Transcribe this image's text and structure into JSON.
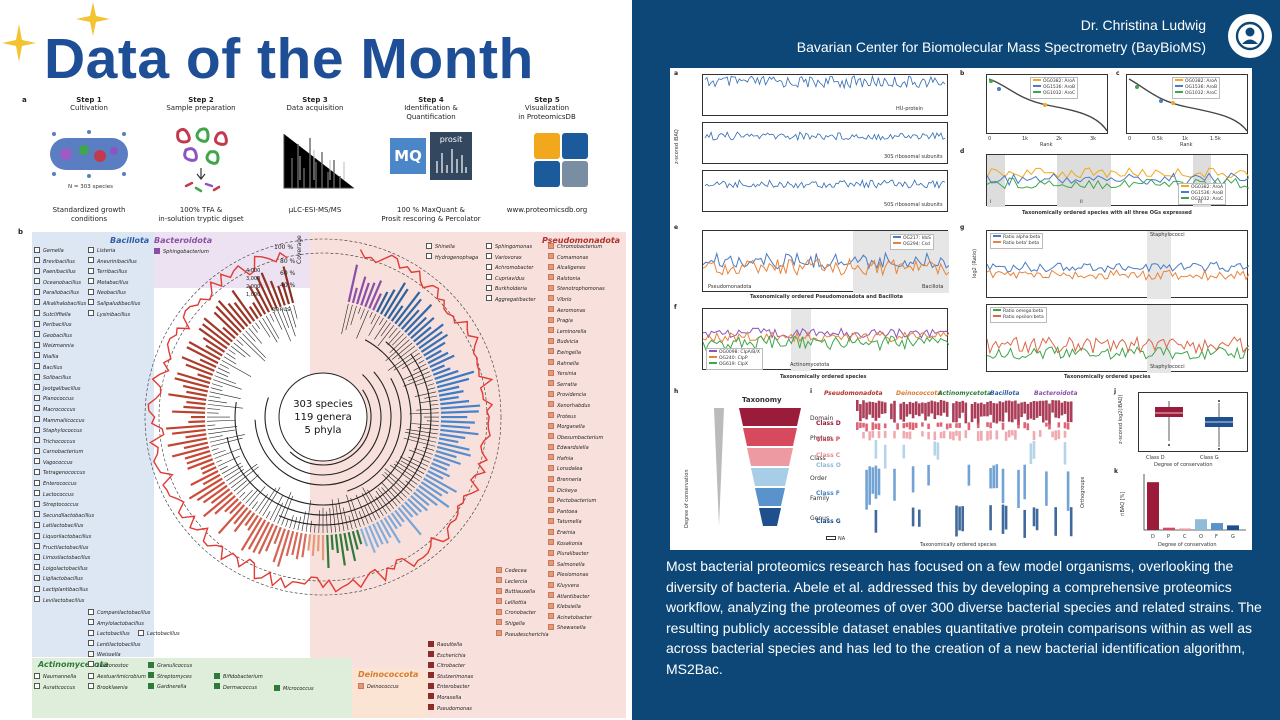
{
  "left": {
    "title": "Data of the Month",
    "panel_a": "a",
    "panel_b": "b",
    "steps": [
      {
        "name": "Step 1",
        "desc1": "Cultivation",
        "desc2": "",
        "foot1": "Standardized growth",
        "foot2": "conditions",
        "note": "N = 303 species"
      },
      {
        "name": "Step 2",
        "desc1": "Sample preparation",
        "desc2": "",
        "foot1": "100% TFA &",
        "foot2": "in-solution tryptic digset"
      },
      {
        "name": "Step 3",
        "desc1": "Data acquisition",
        "desc2": "",
        "foot1": "µLC-ESI-MS/MS",
        "foot2": ""
      },
      {
        "name": "Step 4",
        "desc1": "Identification &",
        "desc2": "Quantification",
        "foot1": "100 % MaxQuant &",
        "foot2": "Prosit rescoring & Percolator"
      },
      {
        "name": "Step 5",
        "desc1": "Visualization",
        "desc2": "in ProteomicsDB",
        "foot1": "www.proteomicsdb.org",
        "foot2": ""
      }
    ],
    "mq_label": "MQ",
    "prosit_label": "prosit",
    "phyla": {
      "bacillota": "Bacillota",
      "bacteroidota": "Bacteroidota",
      "pseudomonadota": "Pseudomonadota",
      "actinomycetota": "Actinomycetota",
      "deinococcota": "Deinococcota"
    },
    "tree_center": [
      "303 species",
      "119 genera",
      "5 phyla"
    ],
    "coverage_label": "Coverage",
    "coverage_ticks": [
      "100 %",
      "80 %",
      "60 %",
      "40 %"
    ],
    "protein_ticks": [
      "4,000",
      "3,000",
      "2,000",
      "1,000"
    ],
    "genus_label": "genus",
    "bacillota_col1": [
      "Gemella",
      "Brevibacillus",
      "Paenibacillus",
      "Oceanobacillus",
      "Paraliobacillus",
      "Alkalihalobacillus",
      "Sutcliffiella",
      "Peribacillus",
      "Geobacillus",
      "Weizmannia",
      "Niallia",
      "Bacillus",
      "Solibacillus",
      "Jeotgalibacillus",
      "Planococcus",
      "Macrococcus",
      "Mammaliicoccus",
      "Staphylococcus",
      "Trichococcus",
      "Carnobacterium",
      "Vagococcus",
      "Tetragenococcus",
      "Enterococcus",
      "Lactococcus",
      "Streptococcus",
      "Secundilactobacillus",
      "Latilactobacillus",
      "Liquorilactobacillus",
      "Fructilactobacillus",
      "Limosilactobacillus",
      "Loigolactobacillus",
      "Ligilactobacillus",
      "Lactiplantibacillus",
      "Levilactobacillus"
    ],
    "bacillota_col2": [
      "Listeria",
      "Aneurinibacillus",
      "Terribacillus",
      "Metabacillus",
      "Neobacillus",
      "Salipaludibacillus",
      "Lysinibacillus"
    ],
    "bacillota_col3": [
      "Companilactobacillus",
      "Amylolactobacillus",
      "Lactobacillus",
      "Lentilactobacillus",
      "Weissella",
      "Leuconostoc"
    ],
    "bacillota_col4": [
      "Lactobacillus"
    ],
    "bacteroidota_genus": [
      "Sphingobacterium"
    ],
    "pseudo_col1": [
      "Shinella",
      "Hydrogenophaga"
    ],
    "pseudo_col2": [
      "Sphingomonas",
      "Variovorax",
      "Achromobacter",
      "Cupriavidus",
      "Burkholderia",
      "Aggregatibacter"
    ],
    "pseudo_col3": [
      "Chromobacterium",
      "Comamonas",
      "Alcaligenes",
      "Ralstonia",
      "Stenotrophomonas",
      "Vibrio",
      "Aeromonas",
      "Pragia",
      "Leminorella",
      "Budvicia",
      "Ewingella",
      "Rahnella",
      "Yersinia",
      "Serratia",
      "Providencia",
      "Xenorhabdus",
      "Proteus",
      "Morganella",
      "Obesumbacterium",
      "Edwardsiella",
      "Hafnia",
      "Lonsdalea",
      "Brenneria",
      "Dickeya",
      "Pectobacterium",
      "Pantoea",
      "Tatumella",
      "Erwinia",
      "Kosakonia",
      "Pluralibacter",
      "Salmonella",
      "Plesiomonas",
      "Kluyvera",
      "Atlantibacter",
      "Klebsiella",
      "Acinetobacter",
      "Shewanella"
    ],
    "pseudo_col4": [
      "Cedecea",
      "Leclercia",
      "Buttiauxella",
      "Lelliottia",
      "Cronobacter",
      "Shigella",
      "Pseudescherichia"
    ],
    "pseudo_col5": [
      "Raoultella",
      "Escherichia",
      "Citrobacter",
      "Stutzerimonas",
      "Enterobacter",
      "Moraxella",
      "Pseudomonas"
    ],
    "actino_col1": [
      "Naumannella",
      "Auraticoccus"
    ],
    "actino_col2": [
      "Aestuariimicrobium",
      "Brooklawnia"
    ],
    "actino_col3": [
      "Granulicoccus",
      "Streptomyces",
      "Gardnerella"
    ],
    "actino_col4": [
      "Bifidobacterium",
      "Dermacoccus"
    ],
    "actino_col5": [
      "Micrococcus"
    ],
    "deino_genus": [
      "Deinococcus"
    ]
  },
  "right": {
    "author_name": "Dr. Christina Ludwig",
    "author_affiliation": "Bavarian Center for Biomolecular Mass Spectrometry (BayBioMS)",
    "avatar_icon": "user-icon",
    "figure": {
      "panels": [
        "a",
        "b",
        "c",
        "d",
        "e",
        "f",
        "g",
        "h",
        "i",
        "j",
        "k"
      ],
      "a_tracks": [
        "HU-protein",
        "30S ribosomal subunits",
        "50S ribosomal subunits"
      ],
      "a_ylabel": "z-scored iBAQ",
      "bc_legend": [
        "OG0382: AroA",
        "OG1536: AroB",
        "OG1032: AroC"
      ],
      "bc_xlabel": "Rank",
      "b_ticks": [
        "0",
        "1k",
        "2k",
        "3k"
      ],
      "c_ticks": [
        "0",
        "0.5k",
        "1k",
        "1.5k"
      ],
      "d_legend": [
        "OG0382: AroA",
        "OG1536: AroB",
        "OG1032: AroC"
      ],
      "d_xlabel": "Taxonomically ordered species with all three OGs expressed",
      "d_marks": [
        "i",
        "ii",
        "iii"
      ],
      "e_legend": [
        "OG217: IdsS",
        "OG294: Csd"
      ],
      "e_labels": [
        "Pseudomonadota",
        "Bacillota"
      ],
      "e_xlabel": "Taxonomically ordered Pseudomonadota and Bacillota",
      "f_legend": [
        "OG0098: ClpA/B/X",
        "OG240: ClpP",
        "OG619: ClpX"
      ],
      "f_label": "Actinomycetota",
      "f_xlabel": "Taxonomically ordered species",
      "g_legend1": [
        "Ratio alpha:beta",
        "Ratio beta':beta"
      ],
      "g_legend2": [
        "Ratio omega:beta",
        "Ratio epsilon:beta"
      ],
      "g_label": "Staphylococci",
      "g_ylabel": "log2 (Ratio)",
      "g_xlabel": "Taxonomically ordered species",
      "h_title": "Taxonomy",
      "h_levels": [
        "Domain",
        "Phylum",
        "Class",
        "Order",
        "Family",
        "Genus"
      ],
      "h_ylabel": "Degree of conservation",
      "i_phyla": [
        "Pseudomonadota",
        "Deinococcota",
        "Actinomycetota",
        "Bacillota",
        "Bacteroidota"
      ],
      "i_classes": [
        "Class D",
        "Class P",
        "Class C",
        "Class O",
        "Class F",
        "Class G"
      ],
      "i_xlabel": "Taxonomically ordered species",
      "i_side": "Orthogroups",
      "i_na": "NA",
      "j_ticks": [
        "Class D",
        "Class G"
      ],
      "j_xlabel": "Degree of conservation",
      "j_ylabel": "z-scored log2(iBAQ)",
      "k_ticks": [
        "D",
        "P",
        "C",
        "O",
        "F",
        "G"
      ],
      "k_xlabel": "Degree of conservation",
      "k_ylabel": "riBAQ [%]"
    },
    "body_text": "Most bacterial proteomics research has focused on a few model organisms, overlooking the diversity of bacteria. Abele et al. addressed this by developing a comprehensive proteomics workflow, analyzing the proteomes of over 300 diverse bacterial species and related strains. The resulting publicly accessible dataset enables quantitative protein comparisons within as well as across bacterial species and has led to the creation of a new bacterial identification algorithm, MS2Bac."
  },
  "chart_data": [
    {
      "type": "bar",
      "title": "",
      "categories": [
        "D",
        "P",
        "C",
        "O",
        "F",
        "G"
      ],
      "values": [
        62,
        3,
        2,
        14,
        9,
        6
      ],
      "xlabel": "Degree of conservation",
      "ylabel": "riBAQ [%]",
      "ylim": [
        0,
        70
      ]
    }
  ],
  "colors": {
    "title_blue": "#1d4e96",
    "panel_navy": "#0c4778",
    "sparkle": "#f4c430",
    "class_d": "#9b1b3b",
    "class_g": "#1f4f8c"
  }
}
